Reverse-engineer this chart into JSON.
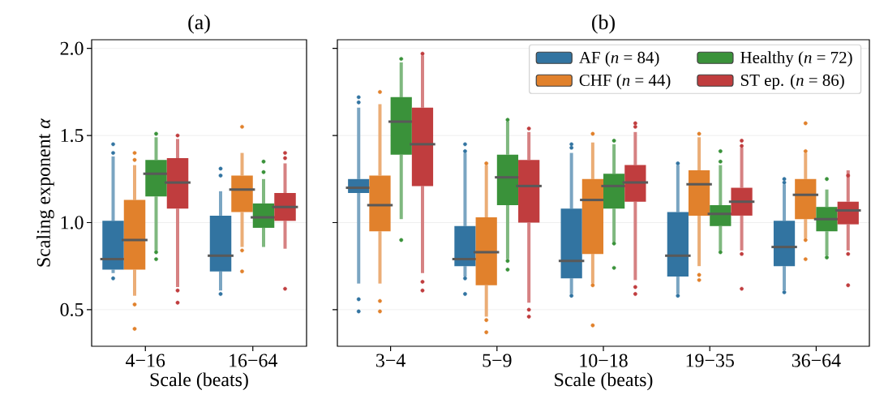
{
  "chart_data": [
    {
      "type": "box",
      "title": "(a)",
      "xlabel": "Scale (beats)",
      "ylabel": "Scaling exponent *α*",
      "categories": [
        "4−16",
        "16−64"
      ],
      "ylim": [
        0.29,
        2.05
      ],
      "yticks": [
        {
          "value": 0.5,
          "label": "0.5"
        },
        {
          "value": 1.0,
          "label": "1.0"
        },
        {
          "value": 1.5,
          "label": "1.5"
        },
        {
          "value": 2.0,
          "label": "2.0"
        }
      ],
      "grid": "y",
      "series": [
        {
          "color": "#3274a1",
          "boxes": [
            {
              "low": 0.71,
              "q1": 0.73,
              "median": 0.79,
              "q3": 1.01,
              "high": 1.38,
              "outliers": [
                1.45,
                1.4,
                0.68
              ]
            },
            {
              "low": 0.61,
              "q1": 0.72,
              "median": 0.81,
              "q3": 1.04,
              "high": 1.18,
              "outliers": [
                1.31,
                1.27,
                0.59
              ]
            }
          ]
        },
        {
          "color": "#e1812c",
          "boxes": [
            {
              "low": 0.58,
              "q1": 0.73,
              "median": 0.9,
              "q3": 1.13,
              "high": 1.33,
              "outliers": [
                1.4,
                1.36,
                0.53,
                0.39
              ]
            },
            {
              "low": 0.86,
              "q1": 1.06,
              "median": 1.19,
              "q3": 1.27,
              "high": 1.4,
              "outliers": [
                1.55,
                0.84,
                0.72
              ]
            }
          ]
        },
        {
          "color": "#3a923a",
          "boxes": [
            {
              "low": 0.84,
              "q1": 1.15,
              "median": 1.28,
              "q3": 1.36,
              "high": 1.49,
              "outliers": [
                1.51,
                0.83,
                0.79
              ]
            },
            {
              "low": 0.86,
              "q1": 0.97,
              "median": 1.03,
              "q3": 1.11,
              "high": 1.25,
              "outliers": [
                1.35,
                1.29
              ]
            }
          ]
        },
        {
          "color": "#c03d3e",
          "boxes": [
            {
              "low": 0.63,
              "q1": 1.08,
              "median": 1.23,
              "q3": 1.37,
              "high": 1.48,
              "outliers": [
                1.5,
                0.61,
                0.54
              ]
            },
            {
              "low": 0.85,
              "q1": 1.01,
              "median": 1.09,
              "q3": 1.17,
              "high": 1.34,
              "outliers": [
                1.4,
                1.37,
                0.62
              ]
            }
          ]
        }
      ]
    },
    {
      "type": "box",
      "title": "(b)",
      "xlabel": "Scale (beats)",
      "categories": [
        "3−4",
        "5−9",
        "10−18",
        "19−35",
        "36−64"
      ],
      "ylim": [
        0.29,
        2.05
      ],
      "yticks": [
        {
          "value": 0.5,
          "label": null
        },
        {
          "value": 1.0,
          "label": null
        },
        {
          "value": 1.5,
          "label": null
        },
        {
          "value": 2.0,
          "label": null
        }
      ],
      "grid": "y",
      "tick_labels": "x",
      "legend": "top right",
      "series": [
        {
          "name": "AF (*n* = 84)",
          "color": "#3274a1",
          "boxes": [
            {
              "low": 0.65,
              "q1": 1.17,
              "median": 1.2,
              "q3": 1.25,
              "high": 1.66,
              "outliers": [
                1.72,
                1.69,
                0.56,
                0.49
              ]
            },
            {
              "low": 0.69,
              "q1": 0.75,
              "median": 0.79,
              "q3": 0.98,
              "high": 1.4,
              "outliers": [
                1.45,
                1.41,
                0.68,
                0.59
              ]
            },
            {
              "low": 0.59,
              "q1": 0.68,
              "median": 0.78,
              "q3": 1.08,
              "high": 1.4,
              "outliers": [
                1.45,
                1.43,
                0.58
              ]
            },
            {
              "low": 0.59,
              "q1": 0.69,
              "median": 0.81,
              "q3": 1.06,
              "high": 1.33,
              "outliers": [
                1.34,
                0.58
              ]
            },
            {
              "low": 0.61,
              "q1": 0.75,
              "median": 0.86,
              "q3": 1.01,
              "high": 1.22,
              "outliers": [
                1.25,
                1.23,
                0.6
              ]
            }
          ]
        },
        {
          "name": "CHF (*n* = 44)",
          "color": "#e1812c",
          "boxes": [
            {
              "low": 0.65,
              "q1": 0.95,
              "median": 1.1,
              "q3": 1.27,
              "high": 1.68,
              "outliers": [
                1.75,
                0.55,
                0.49
              ]
            },
            {
              "low": 0.46,
              "q1": 0.64,
              "median": 0.83,
              "q3": 1.03,
              "high": 1.33,
              "outliers": [
                1.34,
                0.44,
                0.37
              ]
            },
            {
              "low": 0.65,
              "q1": 0.82,
              "median": 1.13,
              "q3": 1.25,
              "high": 1.46,
              "outliers": [
                1.51,
                0.64,
                0.41
              ]
            },
            {
              "low": 0.75,
              "q1": 1.04,
              "median": 1.22,
              "q3": 1.3,
              "high": 1.49,
              "outliers": [
                1.51,
                0.7,
                0.67
              ]
            },
            {
              "low": 0.91,
              "q1": 1.02,
              "median": 1.16,
              "q3": 1.25,
              "high": 1.4,
              "outliers": [
                1.57,
                1.41,
                0.9,
                0.79
              ]
            }
          ]
        },
        {
          "name": "Healthy (*n* = 72)",
          "color": "#3a923a",
          "boxes": [
            {
              "low": 1.02,
              "q1": 1.39,
              "median": 1.58,
              "q3": 1.72,
              "high": 1.92,
              "outliers": [
                1.94,
                0.9
              ]
            },
            {
              "low": 0.79,
              "q1": 1.1,
              "median": 1.26,
              "q3": 1.39,
              "high": 1.58,
              "outliers": [
                1.59,
                0.78,
                0.73
              ]
            },
            {
              "low": 0.89,
              "q1": 1.08,
              "median": 1.21,
              "q3": 1.28,
              "high": 1.45,
              "outliers": [
                1.47,
                0.88,
                0.74
              ]
            },
            {
              "low": 0.84,
              "q1": 0.98,
              "median": 1.05,
              "q3": 1.1,
              "high": 1.33,
              "outliers": [
                1.41,
                1.35,
                0.83
              ]
            },
            {
              "low": 0.81,
              "q1": 0.95,
              "median": 1.02,
              "q3": 1.09,
              "high": 1.19,
              "outliers": [
                1.25,
                0.8
              ]
            }
          ]
        },
        {
          "name": "ST ep. (*n* = 86)",
          "color": "#c03d3e",
          "boxes": [
            {
              "low": 0.71,
              "q1": 1.21,
              "median": 1.45,
              "q3": 1.66,
              "high": 1.96,
              "outliers": [
                1.97,
                0.66,
                0.61
              ]
            },
            {
              "low": 0.54,
              "q1": 1.0,
              "median": 1.21,
              "q3": 1.36,
              "high": 1.52,
              "outliers": [
                1.54,
                0.5,
                0.46
              ]
            },
            {
              "low": 0.67,
              "q1": 1.12,
              "median": 1.23,
              "q3": 1.33,
              "high": 1.52,
              "outliers": [
                1.57,
                1.55,
                0.63,
                0.59
              ]
            },
            {
              "low": 0.84,
              "q1": 1.04,
              "median": 1.12,
              "q3": 1.2,
              "high": 1.43,
              "outliers": [
                1.47,
                1.44,
                0.82,
                0.62
              ]
            },
            {
              "low": 0.84,
              "q1": 0.99,
              "median": 1.07,
              "q3": 1.12,
              "high": 1.3,
              "outliers": [
                1.27,
                0.82,
                0.64
              ]
            }
          ]
        }
      ]
    }
  ]
}
